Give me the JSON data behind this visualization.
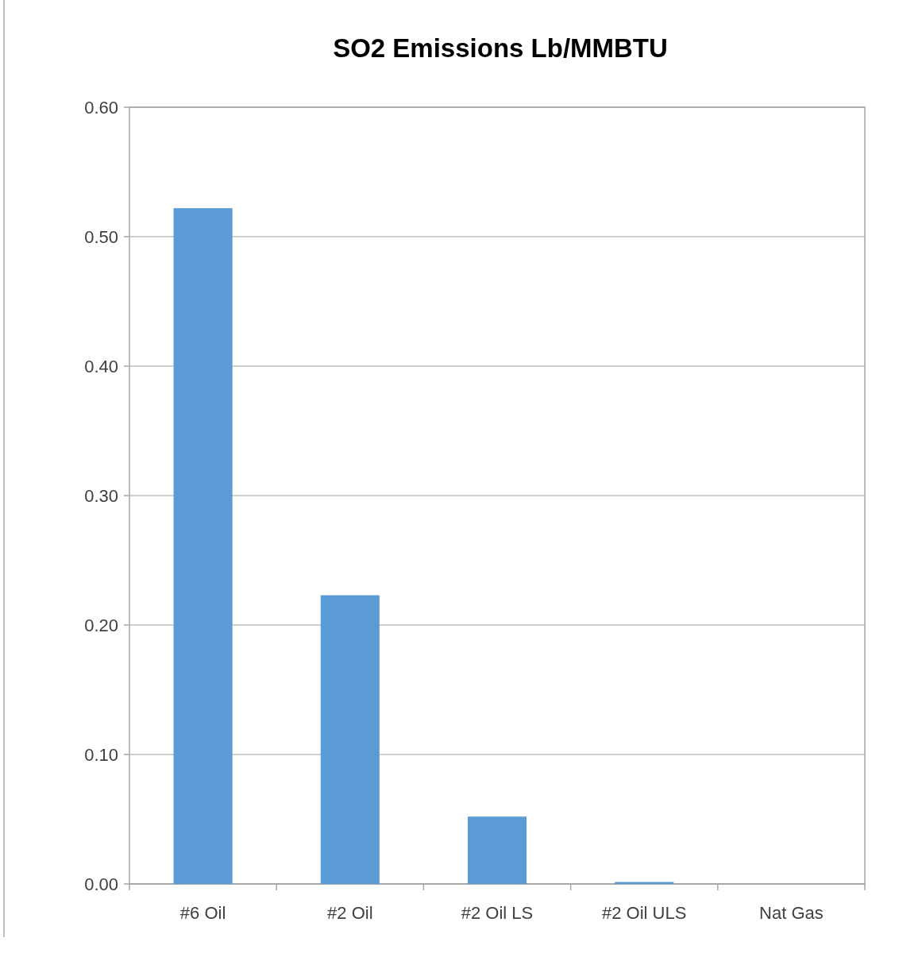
{
  "chart_data": {
    "type": "bar",
    "title": "SO2 Emissions Lb/MMBTU",
    "categories": [
      "#6 Oil",
      "#2 Oil",
      "#2 Oil LS",
      "#2 Oil ULS",
      "Nat Gas"
    ],
    "values": [
      0.522,
      0.223,
      0.052,
      0.0015,
      0
    ],
    "color": "#5b9bd5",
    "ylim": [
      0,
      0.6
    ],
    "yticks": [
      {
        "value": 0,
        "label": "0.00"
      },
      {
        "value": 0.1,
        "label": "0.10"
      },
      {
        "value": 0.2,
        "label": "0.20"
      },
      {
        "value": 0.3,
        "label": "0.30"
      },
      {
        "value": 0.4,
        "label": "0.40"
      },
      {
        "value": 0.5,
        "label": "0.50"
      },
      {
        "value": 0.6,
        "label": "0.60"
      }
    ],
    "grid": "y"
  }
}
